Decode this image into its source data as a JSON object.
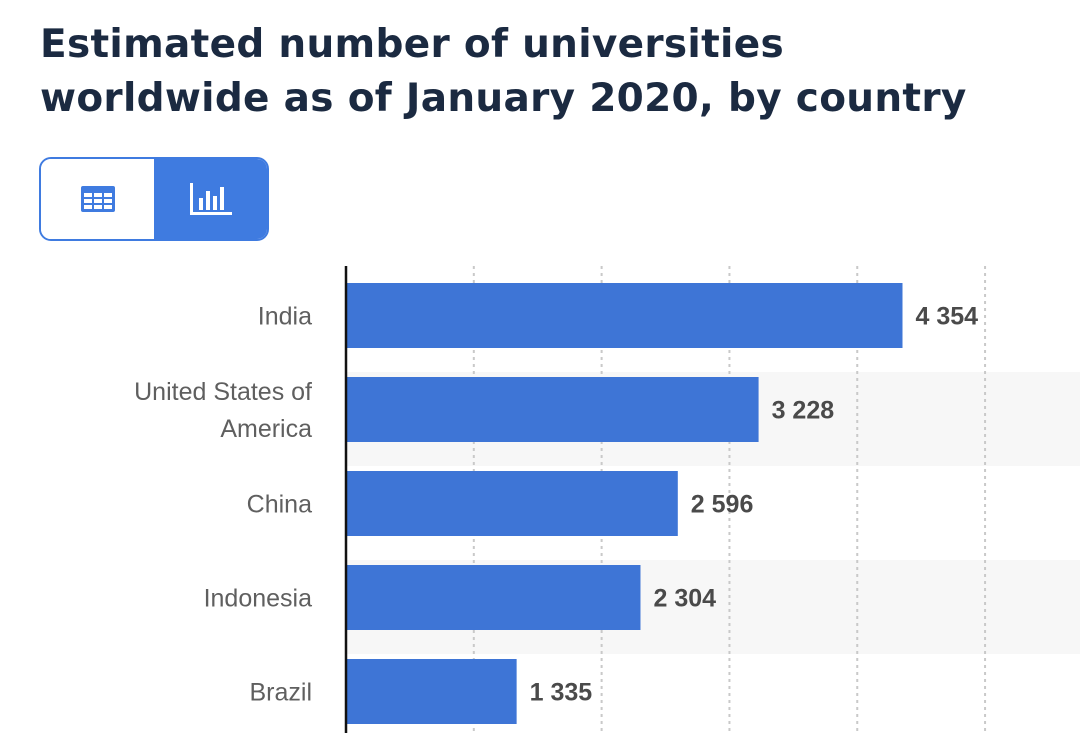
{
  "header": {
    "title_line1": "Estimated number of universities",
    "title_line2": "worldwide as of January 2020, by country"
  },
  "view_toggle": {
    "table_icon": "table-icon",
    "chart_icon": "bar-chart-icon",
    "active": "chart"
  },
  "colors": {
    "bar": "#3e75d6",
    "title": "#1b2a41",
    "accent": "#3f7be0",
    "band": "#f7f7f7",
    "grid": "#c9c9c9"
  },
  "chart_data": {
    "type": "bar",
    "orientation": "horizontal",
    "title": "Estimated number of universities worldwide as of January 2020, by country",
    "categories": [
      "India",
      "United States of America",
      "China",
      "Indonesia",
      "Brazil"
    ],
    "category_lines": [
      [
        "India"
      ],
      [
        "United States of",
        "America"
      ],
      [
        "China"
      ],
      [
        "Indonesia"
      ],
      [
        "Brazil"
      ]
    ],
    "values": [
      4354,
      3228,
      2596,
      2304,
      1335
    ],
    "value_labels": [
      "4 354",
      "3 228",
      "2 596",
      "2 304",
      "1 335"
    ],
    "xlim": [
      0,
      5000
    ],
    "grid_step": 1000,
    "grid": true,
    "xlabel": "",
    "ylabel": ""
  }
}
